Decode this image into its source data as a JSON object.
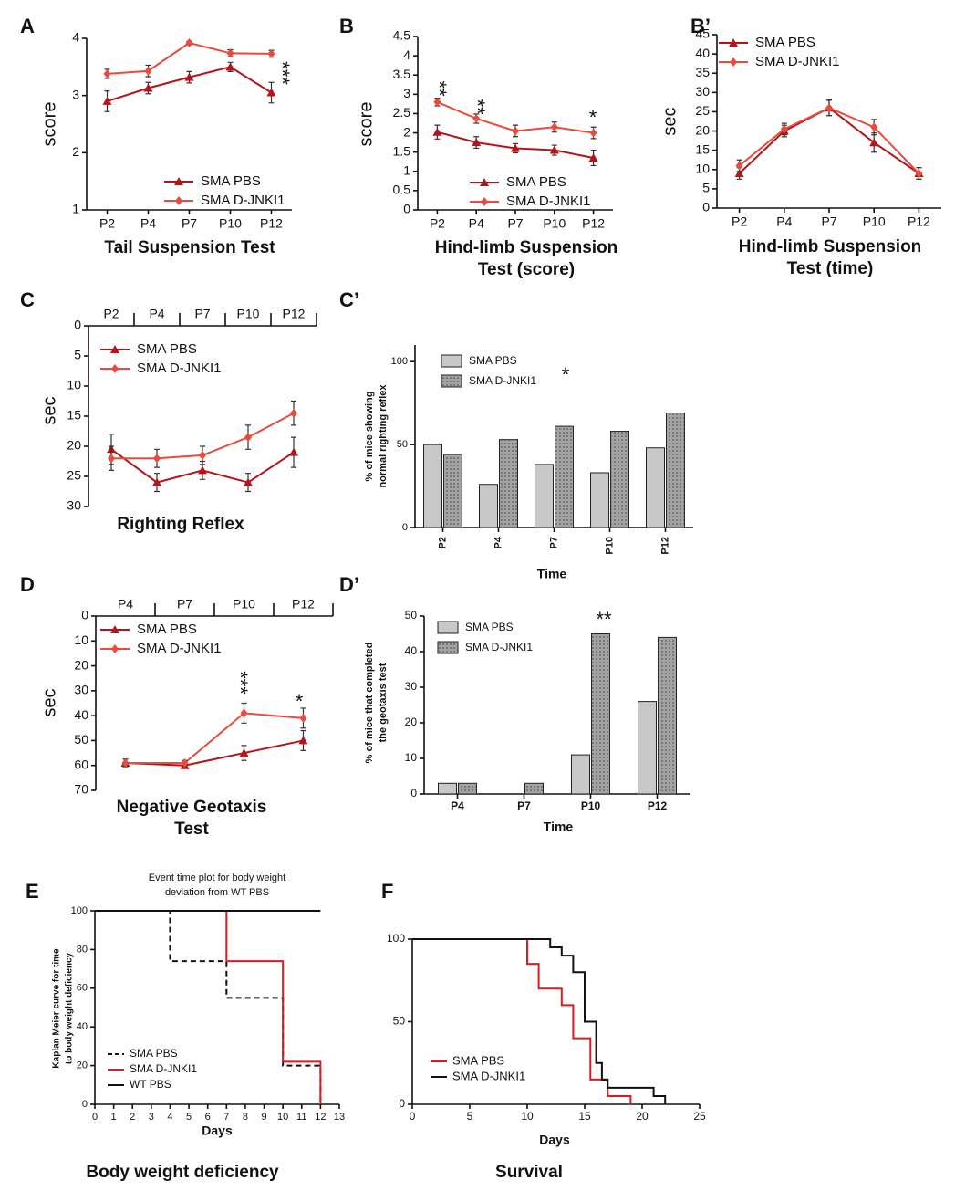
{
  "chart_data": [
    {
      "panel": "A",
      "type": "line",
      "title": [
        "Tail Suspension Test"
      ],
      "ylabel": [
        "score"
      ],
      "categories": [
        "P2",
        "P4",
        "P7",
        "P10",
        "P12"
      ],
      "ylim": [
        1,
        4
      ],
      "yticks": [
        1,
        2,
        3,
        4
      ],
      "annotations": [
        "***"
      ],
      "series": [
        {
          "name": "SMA PBS",
          "color": "#b3151b",
          "marker": "triangle",
          "values": [
            2.9,
            3.13,
            3.32,
            3.5,
            3.05
          ],
          "errors": [
            0.18,
            0.1,
            0.1,
            0.08,
            0.18
          ]
        },
        {
          "name": "SMA D-JNKI1",
          "color": "#ea4b3c",
          "marker": "diamond",
          "values": [
            3.38,
            3.43,
            3.92,
            3.74,
            3.73
          ],
          "errors": [
            0.08,
            0.1,
            0.03,
            0.06,
            0.06
          ]
        }
      ]
    },
    {
      "panel": "B",
      "type": "line",
      "title": [
        "Hind-limb Suspension",
        "Test (score)"
      ],
      "ylabel": [
        "score"
      ],
      "categories": [
        "P2",
        "P4",
        "P7",
        "P10",
        "P12"
      ],
      "ylim": [
        0,
        4.5
      ],
      "yticks": [
        0,
        0.5,
        1,
        1.5,
        2,
        2.5,
        3,
        3.5,
        4,
        4.5
      ],
      "annotations": [
        "**",
        "**",
        "*"
      ],
      "series": [
        {
          "name": "SMA PBS",
          "color": "#b3151b",
          "marker": "triangle",
          "values": [
            2.02,
            1.75,
            1.6,
            1.55,
            1.35
          ],
          "errors": [
            0.18,
            0.15,
            0.12,
            0.13,
            0.2
          ]
        },
        {
          "name": "SMA D-JNKI1",
          "color": "#ea4b3c",
          "marker": "diamond",
          "values": [
            2.8,
            2.37,
            2.05,
            2.15,
            2.0
          ],
          "errors": [
            0.1,
            0.12,
            0.15,
            0.13,
            0.15
          ]
        }
      ]
    },
    {
      "panel": "B’",
      "type": "line",
      "title": [
        "Hind-limb Suspension",
        "Test (time)"
      ],
      "ylabel": [
        "sec"
      ],
      "categories": [
        "P2",
        "P4",
        "P7",
        "P10",
        "P12"
      ],
      "ylim": [
        0,
        45
      ],
      "yticks": [
        0,
        5,
        10,
        15,
        20,
        25,
        30,
        35,
        40,
        45
      ],
      "series": [
        {
          "name": "SMA PBS",
          "color": "#b3151b",
          "marker": "triangle",
          "values": [
            9,
            20,
            26,
            17,
            9
          ],
          "errors": [
            1.5,
            1.5,
            2,
            2.5,
            1.5
          ]
        },
        {
          "name": "SMA D-JNKI1",
          "color": "#ea4b3c",
          "marker": "diamond",
          "values": [
            11,
            20.5,
            26,
            21,
            9
          ],
          "errors": [
            1.5,
            1.5,
            2,
            2,
            1.5
          ]
        }
      ]
    },
    {
      "panel": "C",
      "type": "line",
      "invert": true,
      "title": [
        "Righting Reflex"
      ],
      "ylabel": [
        "sec"
      ],
      "categories": [
        "P2",
        "P4",
        "P7",
        "P10",
        "P12"
      ],
      "ylim": [
        0,
        30
      ],
      "yticks": [
        0,
        5,
        10,
        15,
        20,
        25,
        30
      ],
      "series": [
        {
          "name": "SMA PBS",
          "color": "#b3151b",
          "marker": "triangle",
          "values": [
            20.5,
            26,
            24,
            26,
            21
          ],
          "errors": [
            2.5,
            1.5,
            1.5,
            1.5,
            2.5
          ]
        },
        {
          "name": "SMA D-JNKI1",
          "color": "#ea4b3c",
          "marker": "diamond",
          "values": [
            22,
            22,
            21.5,
            18.5,
            14.5
          ],
          "errors": [
            2,
            1.5,
            1.5,
            2,
            2
          ]
        }
      ]
    },
    {
      "panel": "C’",
      "type": "bar",
      "xlabel": "Time",
      "ylabel": [
        "% of mice showing",
        "normal righting reflex"
      ],
      "categories": [
        "P2",
        "P4",
        "P7",
        "P10",
        "P12"
      ],
      "ylim": [
        0,
        110
      ],
      "yticks": [
        0,
        50,
        100
      ],
      "annotations": [
        "*"
      ],
      "series": [
        {
          "name": "SMA PBS",
          "color": "#c8c8c8",
          "values": [
            50,
            26,
            38,
            33,
            48
          ]
        },
        {
          "name": "SMA D-JNKI1",
          "color": "#a3a3a3",
          "pattern": "dotted",
          "values": [
            44,
            53,
            61,
            58,
            69
          ]
        }
      ]
    },
    {
      "panel": "D",
      "type": "line",
      "invert": true,
      "title": [
        "Negative Geotaxis",
        "Test"
      ],
      "ylabel": [
        "sec"
      ],
      "categories": [
        "P4",
        "P7",
        "P10",
        "P12"
      ],
      "ylim": [
        0,
        70
      ],
      "yticks": [
        0,
        10,
        20,
        30,
        40,
        50,
        60,
        70
      ],
      "annotations": [
        "***",
        "*"
      ],
      "series": [
        {
          "name": "SMA PBS",
          "color": "#b3151b",
          "marker": "triangle",
          "values": [
            59,
            60,
            55,
            50
          ],
          "errors": [
            1.5,
            1,
            3,
            4
          ]
        },
        {
          "name": "SMA D-JNKI1",
          "color": "#ea4b3c",
          "marker": "diamond",
          "values": [
            59,
            59,
            39,
            41
          ],
          "errors": [
            1.5,
            1,
            4,
            4
          ]
        }
      ]
    },
    {
      "panel": "D’",
      "type": "bar",
      "xlabel": "Time",
      "ylabel": [
        "% of mice that completed",
        "the geotaxis test"
      ],
      "categories": [
        "P4",
        "P7",
        "P10",
        "P12"
      ],
      "ylim": [
        0,
        50
      ],
      "yticks": [
        0,
        10,
        20,
        30,
        40,
        50
      ],
      "annotations": [
        "**"
      ],
      "series": [
        {
          "name": "SMA PBS",
          "color": "#c8c8c8",
          "values": [
            3,
            0,
            11,
            26
          ]
        },
        {
          "name": "SMA D-JNKI1",
          "color": "#a3a3a3",
          "pattern": "dotted",
          "values": [
            3,
            3,
            45,
            44
          ]
        }
      ]
    },
    {
      "panel": "E",
      "type": "step",
      "title": [
        "Event time plot for body weight",
        "deviation from WT PBS"
      ],
      "ylabel": [
        "Kaplan Meier curve for time",
        "to body weight deficiency"
      ],
      "xlabel": "Days",
      "caption": "Body weight deficiency",
      "xlim": [
        0,
        13
      ],
      "xticks": [
        0,
        1,
        2,
        3,
        4,
        5,
        6,
        7,
        8,
        9,
        10,
        11,
        12,
        13
      ],
      "ylim": [
        0,
        100
      ],
      "yticks": [
        0,
        20,
        40,
        60,
        80,
        100
      ],
      "series": [
        {
          "name": "SMA PBS",
          "color": "#111111",
          "dash": true,
          "x": [
            0,
            4,
            7,
            10,
            12
          ],
          "values": [
            100,
            74,
            55,
            20,
            0
          ]
        },
        {
          "name": "SMA D-JNKI1",
          "color": "#e0191f",
          "x": [
            0,
            7,
            10,
            12
          ],
          "values": [
            100,
            74,
            22,
            0
          ]
        },
        {
          "name": "WT PBS",
          "color": "#111111",
          "x": [
            0,
            12
          ],
          "values": [
            100,
            100
          ]
        }
      ]
    },
    {
      "panel": "F",
      "type": "step",
      "xlabel": "Days",
      "caption": "Survival",
      "xlim": [
        0,
        25
      ],
      "xticks": [
        0,
        5,
        10,
        15,
        20,
        25
      ],
      "ylim": [
        0,
        100
      ],
      "yticks": [
        0,
        50,
        100
      ],
      "series": [
        {
          "name": "SMA PBS",
          "color": "#e0191f",
          "x": [
            0,
            10,
            11,
            13,
            14,
            15.5,
            17,
            19
          ],
          "values": [
            100,
            85,
            70,
            60,
            40,
            15,
            5,
            0
          ]
        },
        {
          "name": "SMA D-JNKI1",
          "color": "#111111",
          "x": [
            0,
            12,
            13,
            14,
            15,
            16,
            16.5,
            17,
            21,
            22
          ],
          "values": [
            100,
            95,
            90,
            80,
            50,
            25,
            15,
            10,
            5,
            0
          ]
        }
      ]
    }
  ]
}
